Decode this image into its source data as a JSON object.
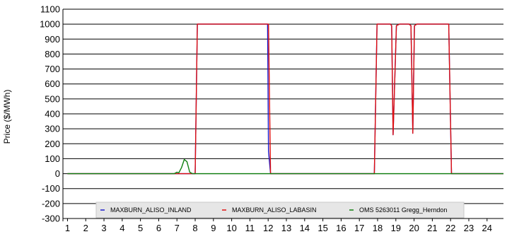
{
  "chart_data": {
    "type": "line",
    "title": "",
    "xlabel": "",
    "ylabel": "Price ($/MWh)",
    "xlim": [
      0.75,
      24.9
    ],
    "ylim": [
      -300,
      1100
    ],
    "grid": true,
    "legend_position": "bottom",
    "x_ticks": [
      "1",
      "2",
      "3",
      "4",
      "5",
      "6",
      "7",
      "8",
      "9",
      "10",
      "11",
      "12",
      "13",
      "14",
      "15",
      "16",
      "17",
      "18",
      "19",
      "20",
      "21",
      "22",
      "23",
      "24"
    ],
    "y_ticks": [
      "1100",
      "1000",
      "900",
      "800",
      "700",
      "600",
      "500",
      "400",
      "300",
      "200",
      "100",
      "0",
      "-100",
      "-200",
      "-300"
    ],
    "series": [
      {
        "name": "MAXBURN_ALISO_INLAND",
        "color": "#1a1acc",
        "marker": "-",
        "x": [
          1,
          7.0,
          7.1,
          7.3,
          7.5,
          7.7,
          8.0,
          8.12,
          11.97,
          12.02,
          12.13,
          17.82,
          17.97,
          18.7,
          18.77,
          18.85,
          19.03,
          19.2,
          19.72,
          19.83,
          19.93,
          20.02,
          20.15,
          21.9,
          22.05,
          24.9
        ],
        "values": [
          0,
          0,
          0,
          0,
          0,
          0,
          0,
          1000,
          1000,
          150,
          0,
          0,
          1000,
          1000,
          990,
          260,
          990,
          1000,
          1000,
          990,
          270,
          990,
          1000,
          1000,
          0,
          0
        ]
      },
      {
        "name": "MAXBURN_ALISO_LABASIN",
        "color": "#e01010",
        "marker": "-",
        "x": [
          1,
          7.0,
          7.1,
          7.3,
          7.5,
          7.7,
          8.0,
          8.12,
          11.97,
          12.02,
          12.13,
          17.82,
          17.97,
          18.7,
          18.77,
          18.85,
          19.03,
          19.2,
          19.72,
          19.83,
          19.93,
          20.02,
          20.15,
          21.9,
          22.05,
          24.9
        ],
        "values": [
          0,
          0,
          0,
          0,
          0,
          0,
          0,
          1000,
          1000,
          1000,
          0,
          0,
          1000,
          1000,
          990,
          260,
          990,
          1000,
          1000,
          990,
          270,
          990,
          1000,
          1000,
          0,
          0
        ]
      },
      {
        "name": "OMS 5263011 Gregg_Herndon",
        "color": "#108010",
        "marker": "-",
        "x": [
          1,
          6.85,
          7.0,
          7.1,
          7.25,
          7.4,
          7.55,
          7.7,
          7.85,
          24.9
        ],
        "values": [
          0,
          0,
          10,
          5,
          40,
          95,
          80,
          10,
          0,
          0
        ]
      }
    ]
  }
}
